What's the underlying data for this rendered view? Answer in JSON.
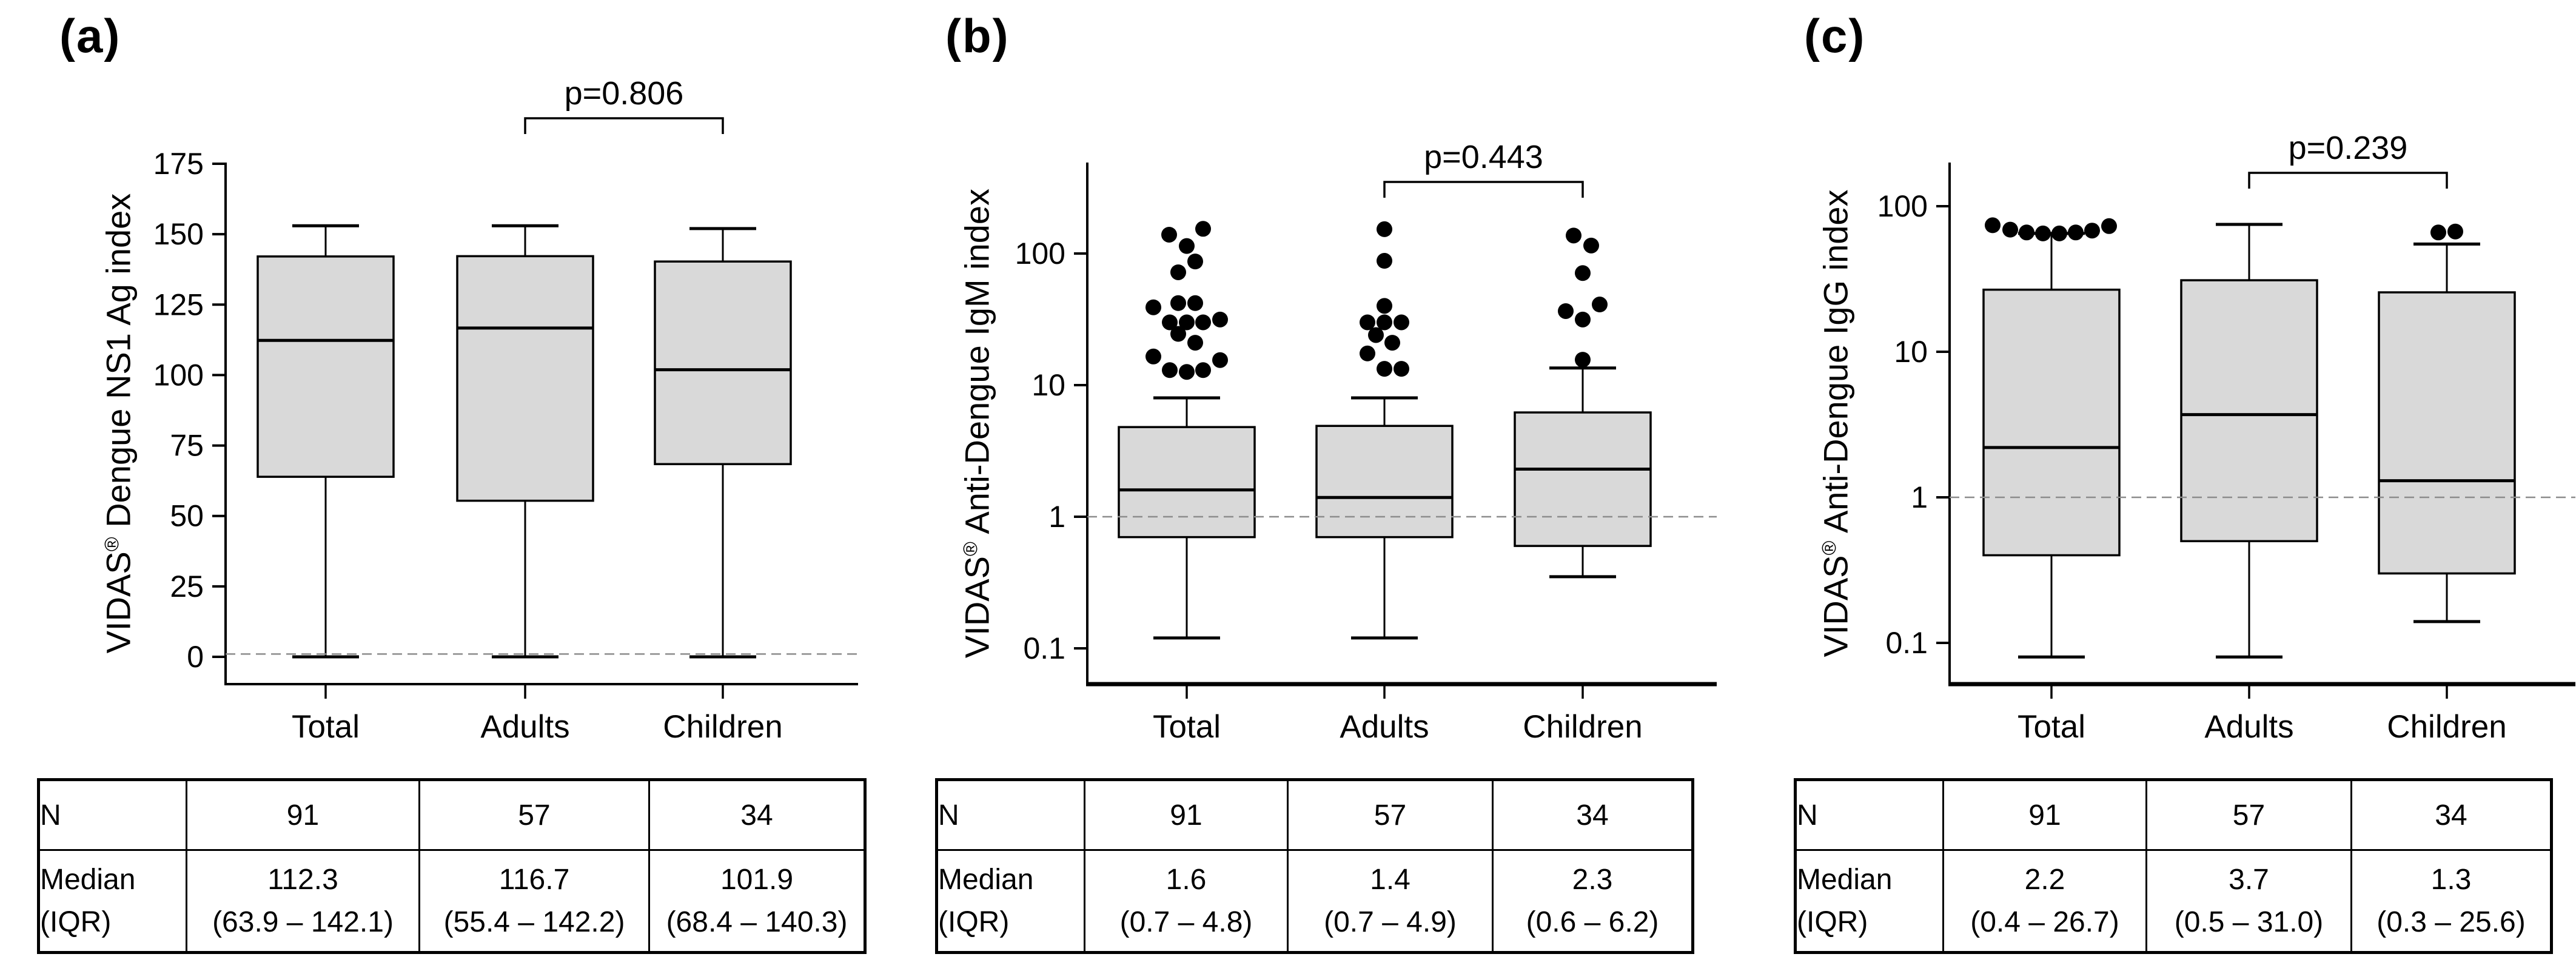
{
  "figure": {
    "background": "#ffffff",
    "box_fill": "#d9d9d9",
    "line_color": "#000000",
    "dash_color": "#8c8c8c"
  },
  "chart_data": [
    {
      "type": "box",
      "panel_label": "(a)",
      "ylabel": "VIDAS® Dengue NS1 Ag index",
      "ylabel_parts": {
        "prefix": "VIDAS",
        "sup": "®",
        "rest": " Dengue NS1 Ag index"
      },
      "yscale": "linear",
      "ylim": [
        0,
        175
      ],
      "yticks": [
        175,
        150,
        125,
        100,
        75,
        50,
        25,
        0
      ],
      "reference_line": 1,
      "grid": false,
      "comparison": {
        "between": [
          "Adults",
          "Children"
        ],
        "label": "p=0.806"
      },
      "categories": [
        "Total",
        "Adults",
        "Children"
      ],
      "boxes": [
        {
          "category": "Total",
          "n": 91,
          "whisker_low": 0,
          "q1": 63.9,
          "median": 112.3,
          "q3": 142.1,
          "whisker_high": 153,
          "outliers": []
        },
        {
          "category": "Adults",
          "n": 57,
          "whisker_low": 0,
          "q1": 55.4,
          "median": 116.7,
          "q3": 142.2,
          "whisker_high": 153,
          "outliers": []
        },
        {
          "category": "Children",
          "n": 34,
          "whisker_low": 0,
          "q1": 68.4,
          "median": 101.9,
          "q3": 140.3,
          "whisker_high": 152,
          "outliers": []
        }
      ],
      "table": {
        "row1_label": "N",
        "row2_label_line1": "Median",
        "row2_label_line2": "(IQR)",
        "n_values": [
          "91",
          "57",
          "34"
        ],
        "median_values": [
          "112.3",
          "116.7",
          "101.9"
        ],
        "iqr_values": [
          "(63.9 – 142.1)",
          "(55.4 – 142.2)",
          "(68.4 – 140.3)"
        ]
      }
    },
    {
      "type": "box",
      "panel_label": "(b)",
      "ylabel": "VIDAS® Anti-Dengue IgM index",
      "ylabel_parts": {
        "prefix": "VIDAS",
        "sup": "®",
        "rest": " Anti-Dengue IgM index"
      },
      "yscale": "log",
      "ylim": [
        0.05,
        250
      ],
      "yticks": [
        100,
        10,
        1,
        0.1
      ],
      "reference_line": 1,
      "grid": false,
      "comparison": {
        "between": [
          "Adults",
          "Children"
        ],
        "label": "p=0.443"
      },
      "categories": [
        "Total",
        "Adults",
        "Children"
      ],
      "boxes": [
        {
          "category": "Total",
          "n": 91,
          "whisker_low": 0.12,
          "q1": 0.7,
          "median": 1.6,
          "q3": 4.8,
          "whisker_high": 8,
          "outliers": [
            [
              154,
              27
            ],
            [
              139,
              -29
            ],
            [
              114,
              0
            ],
            [
              87,
              14
            ],
            [
              72,
              -14
            ],
            [
              42,
              -14
            ],
            [
              42,
              14
            ],
            [
              39,
              -55
            ],
            [
              31.5,
              55
            ],
            [
              30,
              -28
            ],
            [
              30,
              0
            ],
            [
              30,
              27
            ],
            [
              24.5,
              -14
            ],
            [
              21,
              14
            ],
            [
              16.5,
              -55
            ],
            [
              15.5,
              55
            ],
            [
              13,
              -28
            ],
            [
              13,
              27
            ],
            [
              12.6,
              0
            ]
          ]
        },
        {
          "category": "Adults",
          "n": 57,
          "whisker_low": 0.12,
          "q1": 0.7,
          "median": 1.4,
          "q3": 4.9,
          "whisker_high": 8,
          "outliers": [
            [
              153,
              0
            ],
            [
              88,
              0
            ],
            [
              40,
              0
            ],
            [
              30,
              -28
            ],
            [
              30,
              0
            ],
            [
              30,
              28
            ],
            [
              24,
              -14
            ],
            [
              21,
              13
            ],
            [
              17.4,
              -28
            ],
            [
              13.3,
              0
            ],
            [
              13.3,
              28
            ]
          ]
        },
        {
          "category": "Children",
          "n": 34,
          "whisker_low": 0.35,
          "q1": 0.6,
          "median": 2.3,
          "q3": 6.2,
          "whisker_high": 13.5,
          "outliers": [
            [
              137,
              -15
            ],
            [
              115,
              14
            ],
            [
              71,
              0
            ],
            [
              41,
              28
            ],
            [
              36.5,
              -28
            ],
            [
              31.5,
              0
            ],
            [
              15.6,
              0
            ]
          ]
        }
      ],
      "table": {
        "row1_label": "N",
        "row2_label_line1": "Median",
        "row2_label_line2": "(IQR)",
        "n_values": [
          "91",
          "57",
          "34"
        ],
        "median_values": [
          "1.6",
          "1.4",
          "2.3"
        ],
        "iqr_values": [
          "(0.7 – 4.8)",
          "(0.7 – 4.9)",
          "(0.6 – 6.2)"
        ]
      }
    },
    {
      "type": "box",
      "panel_label": "(c)",
      "ylabel": "VIDAS® Anti-Dengue IgG index",
      "ylabel_parts": {
        "prefix": "VIDAS",
        "sup": "®",
        "rest": " Anti-Dengue IgG index"
      },
      "yscale": "log",
      "ylim": [
        0.05,
        250
      ],
      "yticks": [
        100,
        10,
        1,
        0.1
      ],
      "reference_line": 1,
      "grid": false,
      "comparison": {
        "between": [
          "Adults",
          "Children"
        ],
        "label": "p=0.239"
      },
      "categories": [
        "Total",
        "Adults",
        "Children"
      ],
      "boxes": [
        {
          "category": "Total",
          "n": 91,
          "whisker_low": 0.08,
          "q1": 0.4,
          "median": 2.2,
          "q3": 26.7,
          "whisker_high": 65,
          "outliers": [
            [
              74,
              -97
            ],
            [
              69,
              -68
            ],
            [
              66,
              -41
            ],
            [
              65,
              -14
            ],
            [
              65,
              13
            ],
            [
              66,
              40
            ],
            [
              68,
              67
            ],
            [
              73,
              95
            ]
          ]
        },
        {
          "category": "Adults",
          "n": 57,
          "whisker_low": 0.08,
          "q1": 0.5,
          "median": 3.7,
          "q3": 31.0,
          "whisker_high": 75,
          "outliers": []
        },
        {
          "category": "Children",
          "n": 34,
          "whisker_low": 0.14,
          "q1": 0.3,
          "median": 1.3,
          "q3": 25.6,
          "whisker_high": 55,
          "outliers": [
            [
              66,
              -14
            ],
            [
              67,
              14
            ]
          ]
        }
      ],
      "table": {
        "row1_label": "N",
        "row2_label_line1": "Median",
        "row2_label_line2": "(IQR)",
        "n_values": [
          "91",
          "57",
          "34"
        ],
        "median_values": [
          "2.2",
          "3.7",
          "1.3"
        ],
        "iqr_values": [
          "(0.4 – 26.7)",
          "(0.5 – 31.0)",
          "(0.3 – 25.6)"
        ]
      }
    }
  ]
}
